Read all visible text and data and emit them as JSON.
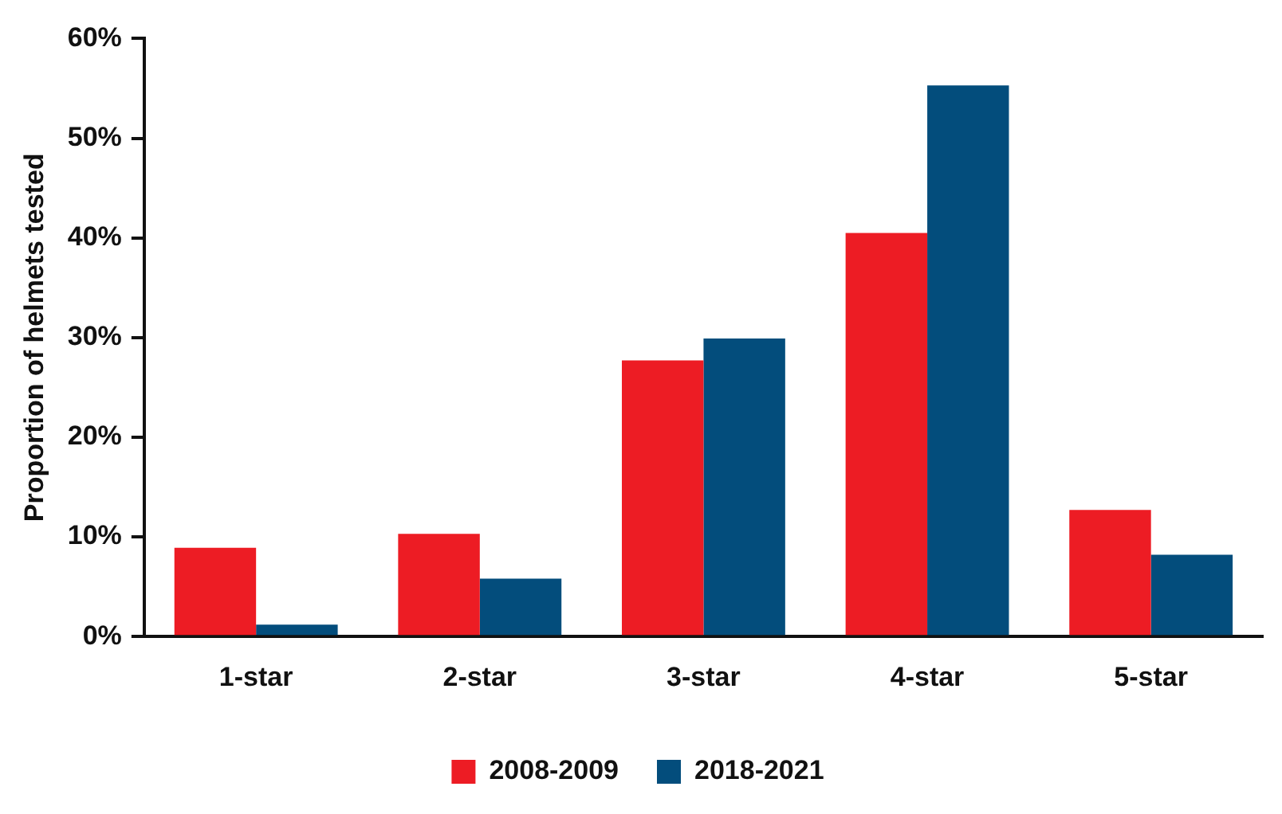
{
  "chart_data": {
    "type": "bar",
    "ylabel": "Proportion of helmets tested",
    "categories": [
      "1-star",
      "2-star",
      "3-star",
      "4-star",
      "5-star"
    ],
    "series": [
      {
        "name": "2008-2009",
        "color": "#ed1c24",
        "values": [
          8.9,
          10.3,
          27.7,
          40.5,
          12.7
        ]
      },
      {
        "name": "2018-2021",
        "color": "#034d7c",
        "values": [
          1.2,
          5.8,
          29.9,
          55.3,
          8.2
        ]
      }
    ],
    "ylim": [
      0,
      60
    ],
    "yticks": [
      {
        "value": 0,
        "label": "0%"
      },
      {
        "value": 10,
        "label": "10%"
      },
      {
        "value": 20,
        "label": "20%"
      },
      {
        "value": 30,
        "label": "30%"
      },
      {
        "value": 40,
        "label": "40%"
      },
      {
        "value": 50,
        "label": "50%"
      },
      {
        "value": 60,
        "label": "60%"
      }
    ],
    "grid": false,
    "legend": "bottom"
  }
}
